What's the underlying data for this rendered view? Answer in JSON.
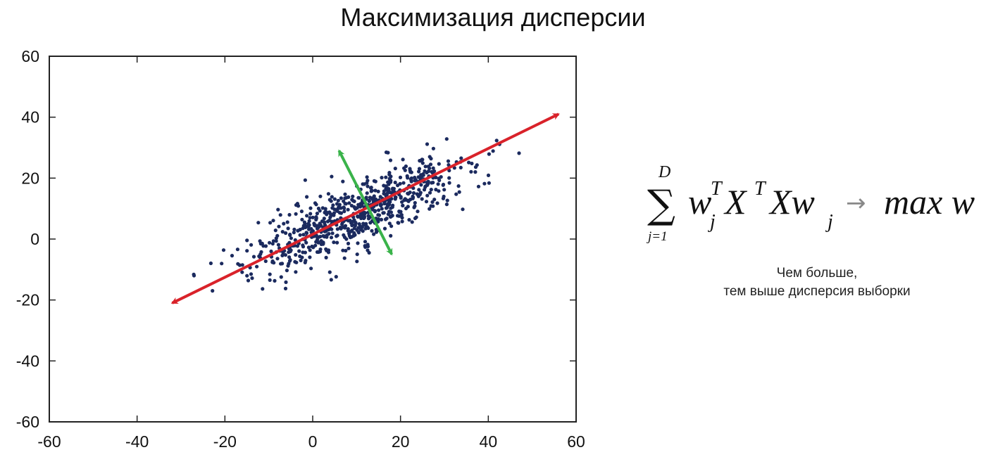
{
  "chart_data": {
    "type": "scatter",
    "title": "Максимизация дисперсии",
    "xlim": [
      -60,
      60
    ],
    "ylim": [
      -60,
      60
    ],
    "x_ticks": [
      -60,
      -40,
      -20,
      0,
      20,
      40,
      60
    ],
    "y_ticks": [
      -60,
      -40,
      -20,
      0,
      20,
      40,
      60
    ],
    "grid": false,
    "colors": {
      "points": "#1b2a5e",
      "principal_axis": "#d9222a",
      "secondary_axis": "#3ab34a"
    },
    "principal_component_arrow": {
      "from": [
        -32,
        -21
      ],
      "to": [
        56,
        41
      ]
    },
    "second_component_arrow": {
      "from": [
        6,
        29
      ],
      "to": [
        18,
        -5
      ]
    },
    "cloud": {
      "mean": [
        10,
        8
      ],
      "count": 750,
      "slope": 0.7,
      "spread_along": 15,
      "spread_across": 4.2
    }
  },
  "formula": {
    "sum_symbol": "∑",
    "upper": "D",
    "lower": "j=1",
    "w": "w",
    "w_sup": "T",
    "w_sub": "j",
    "X": "X",
    "X_sup": "T",
    "Xw": "Xw",
    "Xw_sub": "j",
    "arrow": "→",
    "result": "max w"
  },
  "caption": {
    "line1": "Чем больше,",
    "line2": "тем выше дисперсия выборки"
  }
}
